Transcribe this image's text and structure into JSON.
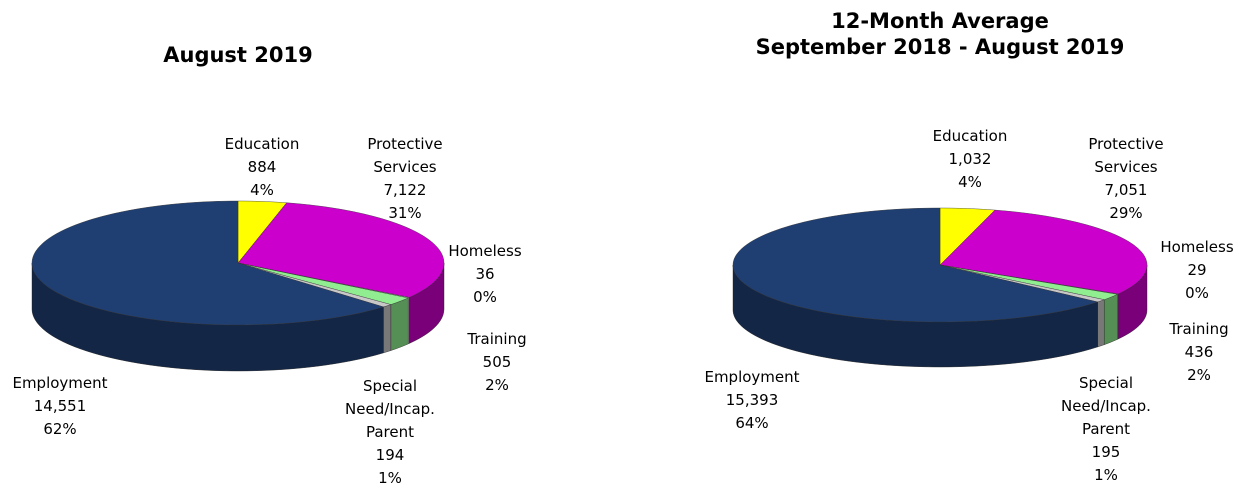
{
  "chart_data": [
    {
      "type": "pie",
      "title": "August 2019",
      "categories": [
        "Education",
        "Protective Services",
        "Homeless",
        "Training",
        "Special Need/Incap. Parent",
        "Employment"
      ],
      "values": [
        884,
        7122,
        36,
        505,
        194,
        14551
      ],
      "value_labels": [
        "884",
        "7,122",
        "36",
        "505",
        "194",
        "14,551"
      ],
      "percent_labels": [
        "4%",
        "31%",
        "0%",
        "2%",
        "1%",
        "62%"
      ],
      "colors": [
        "#ffff00",
        "#cc00cc",
        "#f2fff2",
        "#90ee90",
        "#c8c8c8",
        "#1f3f73"
      ]
    },
    {
      "type": "pie",
      "title": "12-Month Average",
      "subtitle": "September 2018 - August 2019",
      "categories": [
        "Education",
        "Protective Services",
        "Homeless",
        "Training",
        "Special Need/Incap. Parent",
        "Employment"
      ],
      "values": [
        1032,
        7051,
        29,
        436,
        195,
        15393
      ],
      "value_labels": [
        "1,032",
        "7,051",
        "29",
        "436",
        "195",
        "15,393"
      ],
      "percent_labels": [
        "4%",
        "29%",
        "0%",
        "2%",
        "1%",
        "64%"
      ],
      "colors": [
        "#ffff00",
        "#cc00cc",
        "#f2fff2",
        "#90ee90",
        "#c8c8c8",
        "#1f3f73"
      ]
    }
  ]
}
